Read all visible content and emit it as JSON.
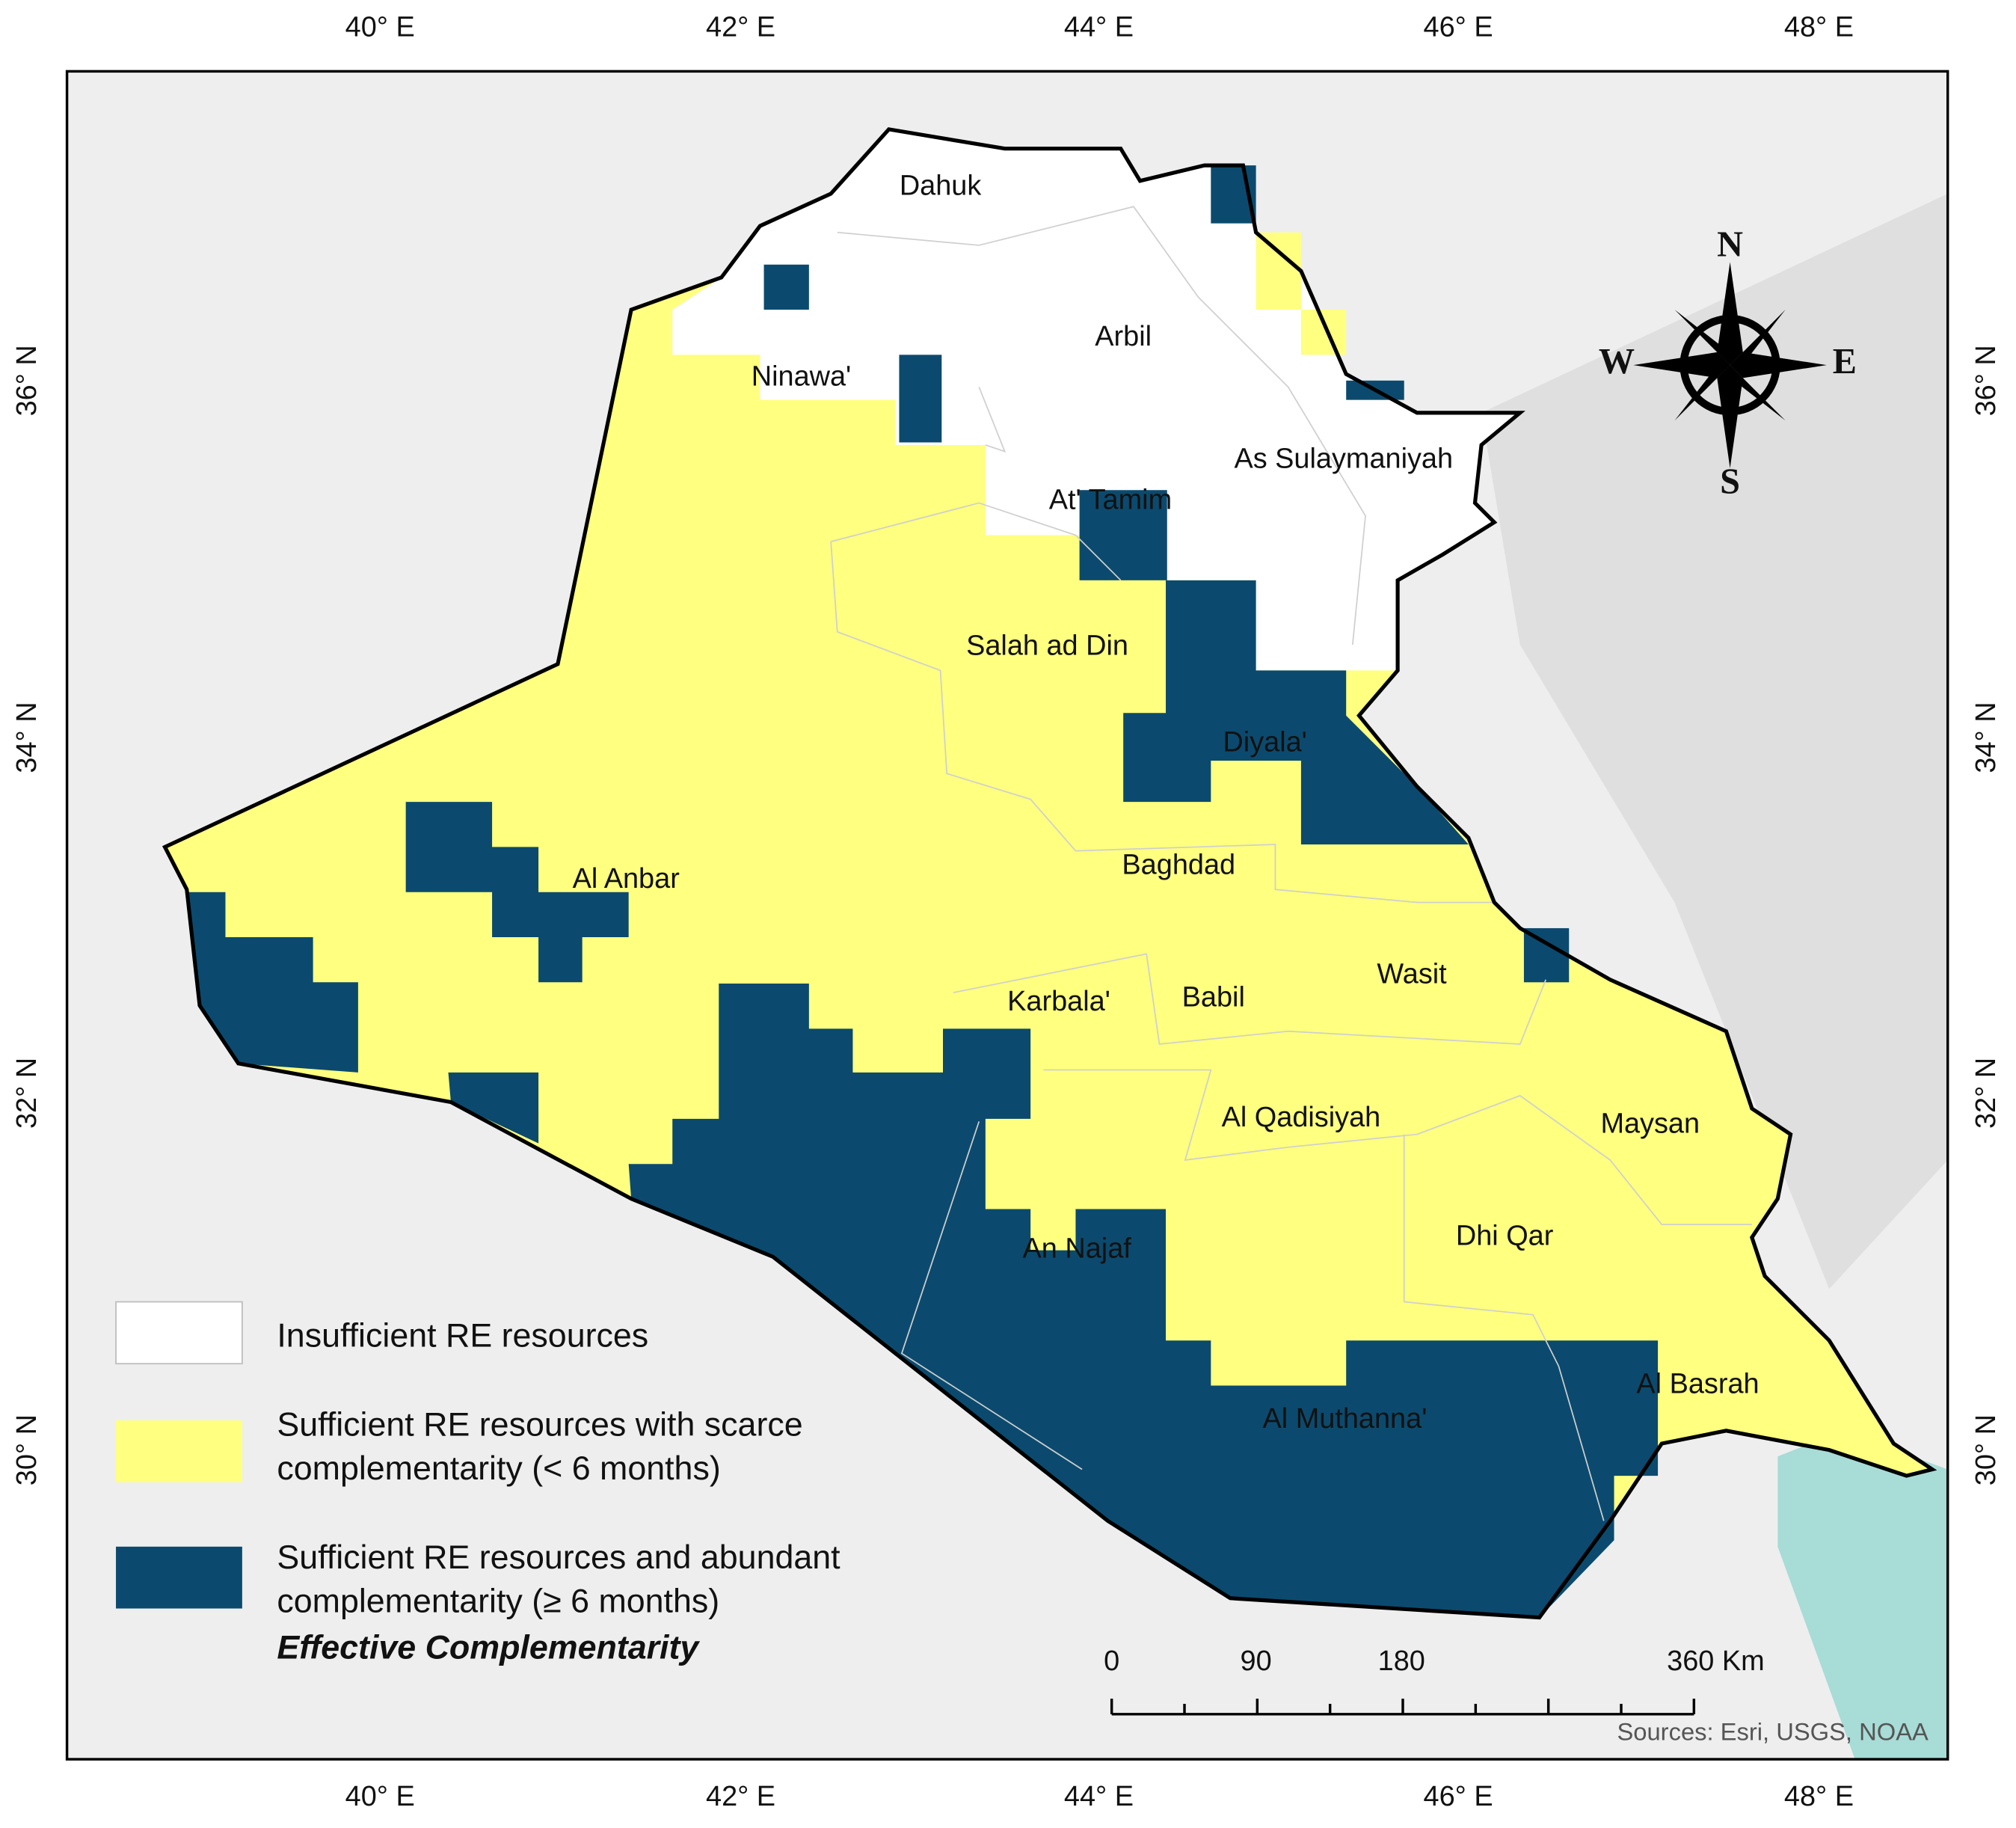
{
  "map": {
    "axes": {
      "top": [
        "40° E",
        "42° E",
        "44° E",
        "46° E",
        "48° E"
      ],
      "bottom": [
        "40° E",
        "42° E",
        "44° E",
        "46° E",
        "48° E"
      ],
      "left": [
        "36° N",
        "34° N",
        "32° N",
        "30° N"
      ],
      "right": [
        "36° N",
        "34° N",
        "32° N",
        "30° N"
      ]
    },
    "regions": [
      "Dahuk",
      "Arbil",
      "Ninawa'",
      "As Sulaymaniyah",
      "At' Tamim",
      "Salah ad Din",
      "Diyala'",
      "Al Anbar",
      "Baghdad",
      "Wasit",
      "Karbala'",
      "Babil",
      "Al Qadisiyah",
      "Maysan",
      "An Najaf",
      "Dhi Qar",
      "Al Basrah",
      "Al Muthanna'"
    ],
    "compass": [
      "N",
      "W",
      "E",
      "S"
    ],
    "legend": {
      "items": [
        {
          "lines": [
            "Insufficient RE resources"
          ]
        },
        {
          "lines": [
            "Sufficient RE resources with scarce",
            "complementarity (< 6 months)"
          ]
        },
        {
          "lines": [
            "Sufficient RE resources and abundant",
            "complementarity (≥ 6 months)"
          ]
        }
      ],
      "title": "Effective Complementarity"
    },
    "scale_bar": [
      "0",
      "90",
      "180",
      "360 Km"
    ],
    "sources": "Sources: Esri, USGS, NOAA"
  }
}
